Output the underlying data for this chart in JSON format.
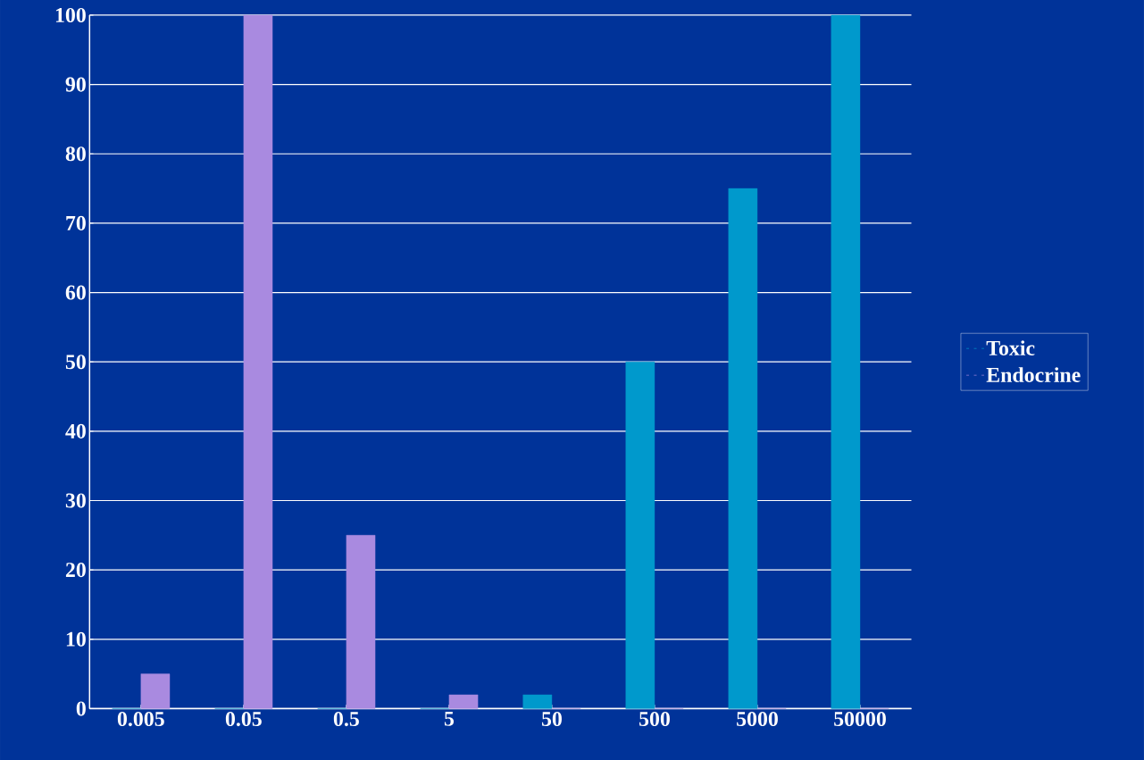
{
  "chart_data": {
    "type": "bar",
    "categories": [
      "0.005",
      "0.05",
      "0.5",
      "5",
      "50",
      "500",
      "5000",
      "50000"
    ],
    "series": [
      {
        "name": "Toxic",
        "color": "#0099cc",
        "values": [
          0,
          0,
          0,
          0,
          2,
          50,
          75,
          100
        ]
      },
      {
        "name": "Endocrine",
        "color": "#a98ae0",
        "values": [
          5,
          100,
          25,
          2,
          0,
          0,
          0,
          0
        ]
      }
    ],
    "ylim": [
      0,
      100
    ],
    "yticks": [
      0,
      10,
      20,
      30,
      40,
      50,
      60,
      70,
      80,
      90,
      100
    ],
    "grid": "y",
    "legend": "right"
  }
}
